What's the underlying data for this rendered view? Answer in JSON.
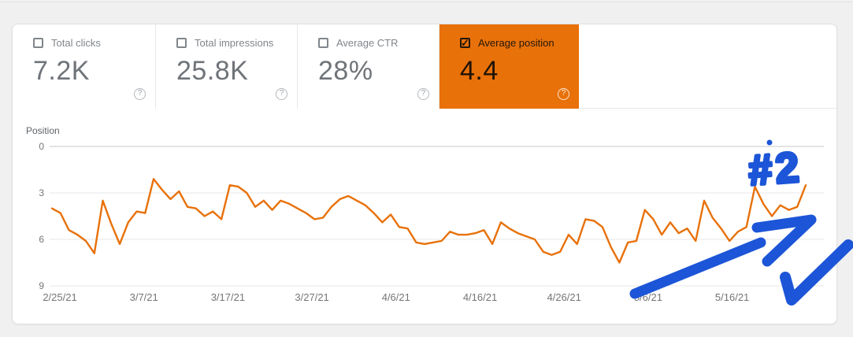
{
  "page": {
    "background": "#f0f0f1"
  },
  "selected_metric_color": "#e8710a",
  "help_icon": "?",
  "metrics": [
    {
      "label": "Total clicks",
      "value": "7.2K",
      "checked": false
    },
    {
      "label": "Total impressions",
      "value": "25.8K",
      "checked": false
    },
    {
      "label": "Average CTR",
      "value": "28%",
      "checked": false
    },
    {
      "label": "Average position",
      "value": "4.4",
      "checked": true
    }
  ],
  "chart_data": {
    "type": "line",
    "title": "Position",
    "xlabel": "",
    "ylabel": "Position",
    "x_labels": [
      "2/25/21",
      "3/7/21",
      "3/17/21",
      "3/27/21",
      "4/6/21",
      "4/16/21",
      "4/26/21",
      "5/6/21",
      "5/16/21"
    ],
    "x_frequency": "daily",
    "x_start_date": "2/25/21",
    "y_ticks": [
      "0",
      "3",
      "6",
      "9"
    ],
    "ylim": [
      0,
      9
    ],
    "y_axis_inverted": true,
    "grid": true,
    "legend": "none",
    "line_color": "#e8710a",
    "series": [
      {
        "name": "Average position",
        "values": [
          4.0,
          4.3,
          5.4,
          5.7,
          6.1,
          6.9,
          3.5,
          5.0,
          6.3,
          4.9,
          4.2,
          4.3,
          2.1,
          2.8,
          3.4,
          2.9,
          3.9,
          4.0,
          4.5,
          4.2,
          4.7,
          2.5,
          2.6,
          3.0,
          3.9,
          3.5,
          4.1,
          3.5,
          3.7,
          4.0,
          4.3,
          4.7,
          4.6,
          3.9,
          3.4,
          3.2,
          3.5,
          3.8,
          4.3,
          4.9,
          4.4,
          5.2,
          5.3,
          6.2,
          6.3,
          6.2,
          6.1,
          5.5,
          5.7,
          5.7,
          5.6,
          5.4,
          6.3,
          4.9,
          5.3,
          5.6,
          5.8,
          6.0,
          6.8,
          7.0,
          6.8,
          5.7,
          6.3,
          4.7,
          4.8,
          5.2,
          6.5,
          7.5,
          6.2,
          6.1,
          4.1,
          4.7,
          5.7,
          4.9,
          5.6,
          5.3,
          6.1,
          3.5,
          4.6,
          5.3,
          6.1,
          5.5,
          5.2,
          2.6,
          3.7,
          4.5,
          3.8,
          4.1,
          3.9,
          2.5
        ]
      }
    ]
  },
  "annotations": {
    "color": "#1c55d7",
    "handwritten_text": "#2",
    "shapes": [
      "dot-above-text",
      "handwritten-#2",
      "arrow-up-right",
      "check-mark-stroke"
    ]
  }
}
